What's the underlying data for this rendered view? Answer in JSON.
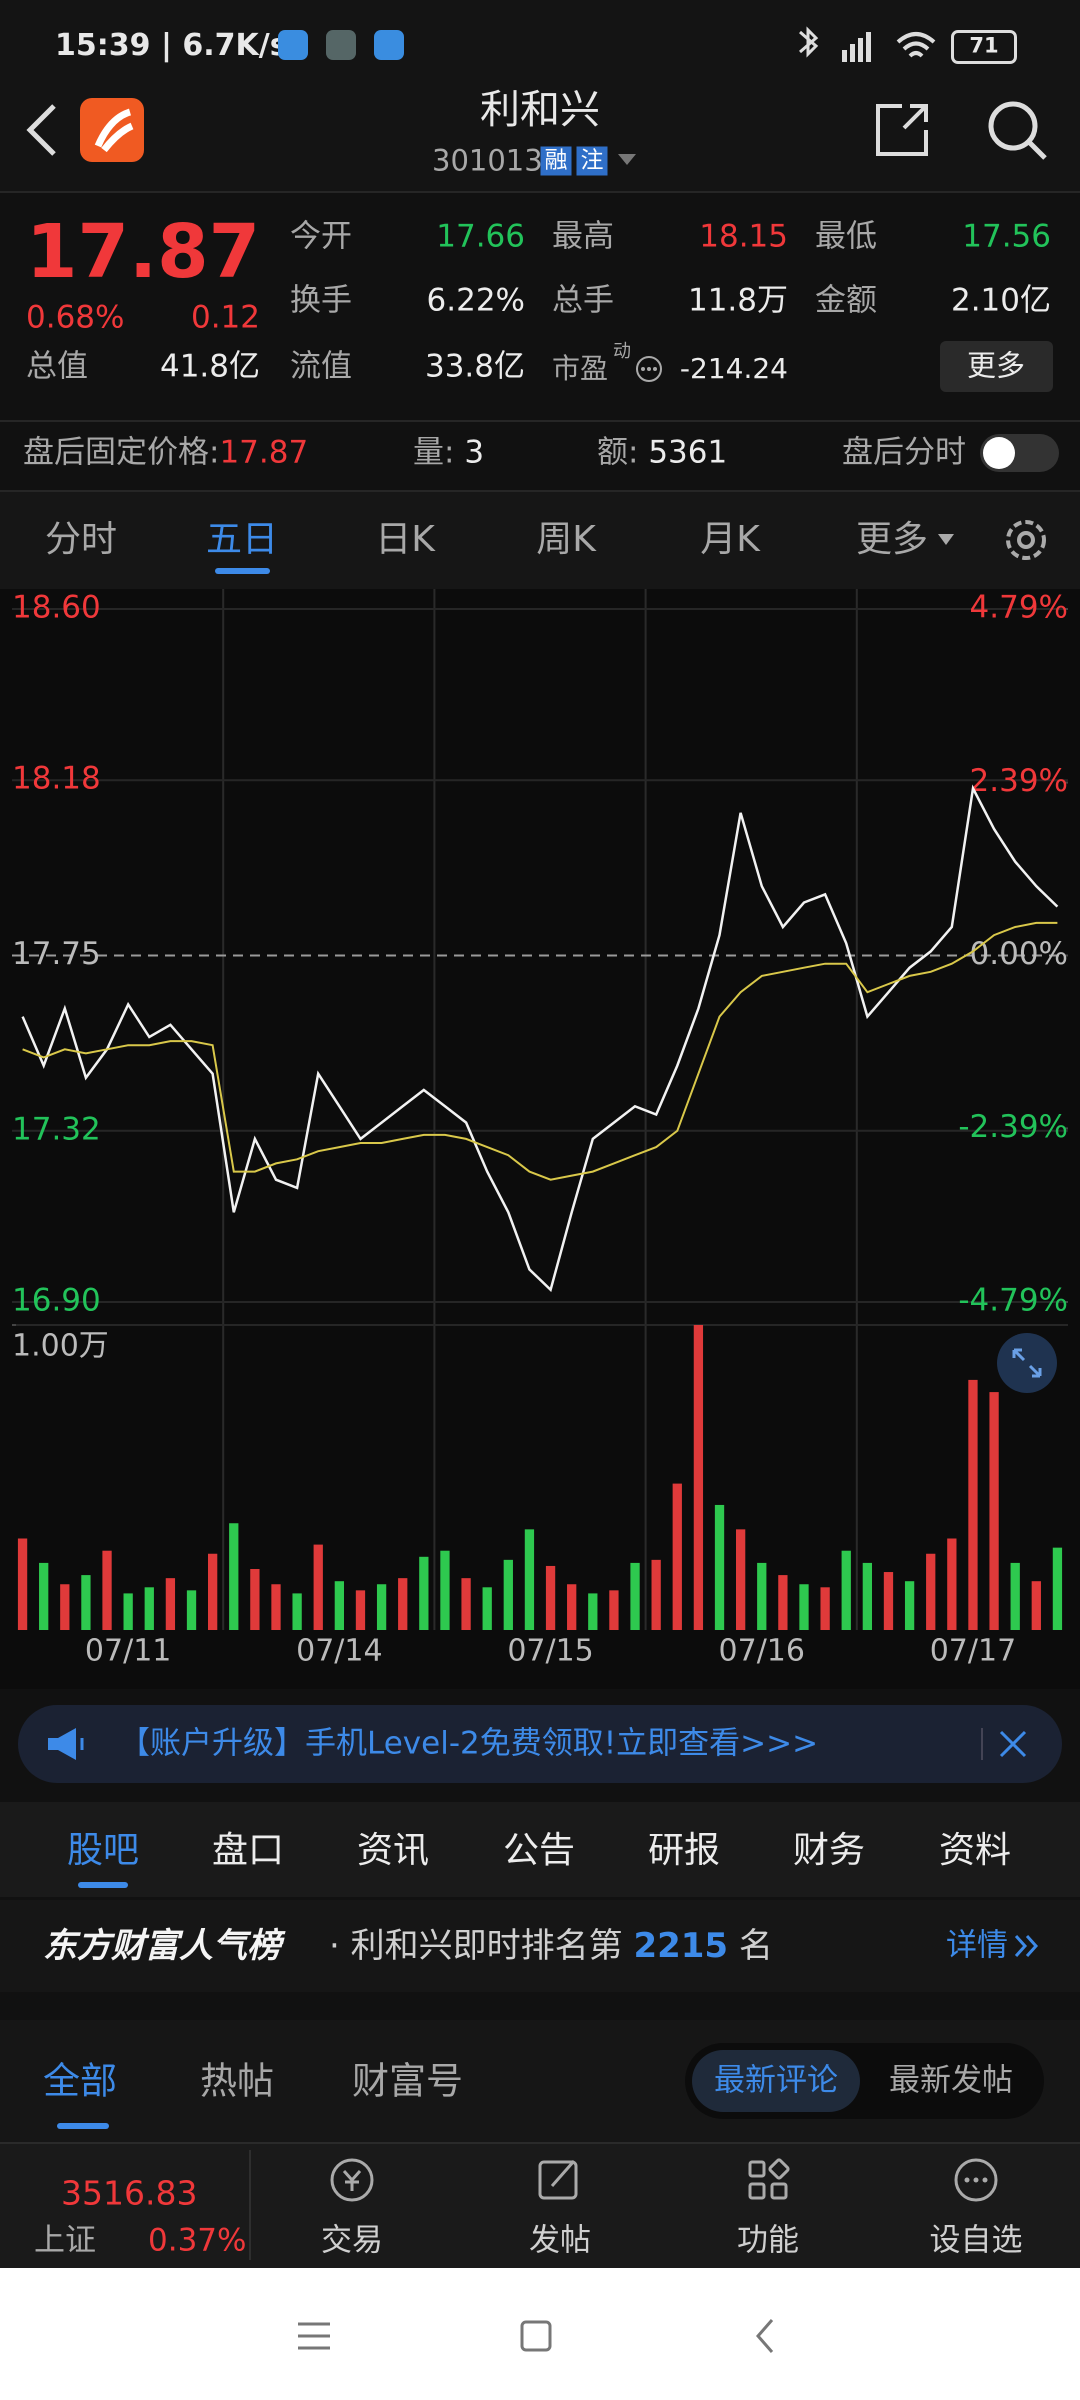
{
  "status_bar": {
    "time": "15:39 | 6.7K/s",
    "battery": "71"
  },
  "header": {
    "title": "利和兴",
    "code": "301013",
    "badges": [
      "融",
      "注"
    ]
  },
  "quote": {
    "price": "17.87",
    "change_pct": "0.68%",
    "change": "0.12",
    "stats": [
      [
        "今开",
        "17.66"
      ],
      [
        "最高",
        "18.15"
      ],
      [
        "最低",
        "17.56"
      ],
      [
        "换手",
        "6.22%"
      ],
      [
        "总手",
        "11.8万"
      ],
      [
        "金额",
        "2.10亿"
      ],
      [
        "总值",
        "41.8亿"
      ],
      [
        "流值",
        "33.8亿"
      ],
      [
        "市盈",
        "-214.24"
      ]
    ],
    "pe_tag": "动",
    "more_button": "更多"
  },
  "after_hours": {
    "label": "盘后固定价格:",
    "price": "17.87",
    "volume_label": "量:",
    "volume": "3",
    "amount_label": "额:",
    "amount": "5361",
    "toggle_label": "盘后分时"
  },
  "chart_tabs": [
    "分时",
    "五日",
    "日K",
    "周K",
    "月K",
    "更多"
  ],
  "chart_data": [
    {
      "type": "line",
      "grid": true,
      "ylim": [
        16.9,
        18.6
      ],
      "yticks": [
        {
          "value": 18.6,
          "label": "18.60"
        },
        18.18,
        17.75,
        17.32,
        {
          "value": 16.9,
          "label": "16.90"
        }
      ],
      "y2lim": [
        -4.79,
        4.79
      ],
      "y2ticks": [
        {
          "value": 4.79,
          "label": "4.79%"
        },
        {
          "value": 2.39,
          "label": "2.39%"
        },
        {
          "value": 0,
          "label": "0.00%"
        },
        {
          "value": -2.39,
          "label": "-2.39%"
        },
        {
          "value": -4.79,
          "label": "-4.79%"
        }
      ],
      "series": [
        {
          "color": "#f2f2f2",
          "values": [
            17.6,
            17.48,
            17.62,
            17.45,
            17.52,
            17.63,
            17.55,
            17.58,
            17.52,
            17.46,
            17.12,
            17.3,
            17.2,
            17.18,
            17.46,
            17.38,
            17.3,
            17.34,
            17.38,
            17.42,
            17.38,
            17.34,
            17.22,
            17.12,
            16.98,
            16.93,
            17.12,
            17.3,
            17.34,
            17.38,
            17.36,
            17.48,
            17.62,
            17.8,
            18.1,
            17.92,
            17.82,
            17.88,
            17.9,
            17.78,
            17.6,
            17.66,
            17.72,
            17.76,
            17.82,
            18.16,
            18.06,
            17.98,
            17.92,
            17.87
          ]
        },
        {
          "color": "#d9c84a",
          "values": [
            17.52,
            17.5,
            17.52,
            17.51,
            17.52,
            17.53,
            17.53,
            17.54,
            17.54,
            17.53,
            17.22,
            17.22,
            17.24,
            17.25,
            17.27,
            17.28,
            17.29,
            17.29,
            17.3,
            17.31,
            17.31,
            17.3,
            17.28,
            17.26,
            17.22,
            17.2,
            17.21,
            17.22,
            17.24,
            17.26,
            17.28,
            17.32,
            17.46,
            17.6,
            17.66,
            17.7,
            17.71,
            17.72,
            17.73,
            17.73,
            17.66,
            17.68,
            17.7,
            17.71,
            17.73,
            17.76,
            17.8,
            17.82,
            17.83,
            17.83
          ]
        }
      ]
    },
    {
      "type": "bar",
      "ylim": [
        0,
        10000
      ],
      "yticks": [
        {
          "value": 10000,
          "label": "1.00万"
        }
      ],
      "categories": [
        null,
        null,
        null,
        null,
        null,
        "07/11",
        null,
        null,
        null,
        null,
        null,
        null,
        null,
        null,
        null,
        "07/14",
        null,
        null,
        null,
        null,
        null,
        null,
        null,
        null,
        null,
        "07/15",
        null,
        null,
        null,
        null,
        null,
        null,
        null,
        null,
        null,
        "07/16",
        null,
        null,
        null,
        null,
        null,
        null,
        null,
        null,
        null,
        "07/17",
        null,
        null,
        null,
        null
      ],
      "values": [
        3000,
        2200,
        1500,
        1800,
        2600,
        1200,
        1400,
        1700,
        1300,
        2500,
        3500,
        2000,
        1500,
        1200,
        2800,
        1600,
        1300,
        1500,
        1700,
        2400,
        2600,
        1700,
        1400,
        2300,
        3300,
        2100,
        1500,
        1200,
        1300,
        2200,
        2300,
        4800,
        10000,
        4100,
        3300,
        2200,
        1800,
        1500,
        1400,
        2600,
        2200,
        1900,
        1600,
        2500,
        3000,
        8200,
        7800,
        2200,
        1600,
        2700
      ],
      "colors": [
        "#e03a3a",
        "#2ec94f",
        "#e03a3a",
        "#2ec94f",
        "#e03a3a",
        "#2ec94f",
        "#2ec94f",
        "#e03a3a",
        "#2ec94f",
        "#e03a3a",
        "#2ec94f",
        "#e03a3a",
        "#e03a3a",
        "#2ec94f",
        "#e03a3a",
        "#2ec94f",
        "#e03a3a",
        "#2ec94f",
        "#e03a3a",
        "#2ec94f",
        "#2ec94f",
        "#e03a3a",
        "#2ec94f",
        "#2ec94f",
        "#2ec94f",
        "#e03a3a",
        "#e03a3a",
        "#2ec94f",
        "#e03a3a",
        "#2ec94f",
        "#e03a3a",
        "#e03a3a",
        "#e03a3a",
        "#2ec94f",
        "#e03a3a",
        "#2ec94f",
        "#e03a3a",
        "#2ec94f",
        "#e03a3a",
        "#2ec94f",
        "#2ec94f",
        "#e03a3a",
        "#2ec94f",
        "#e03a3a",
        "#e03a3a",
        "#e03a3a",
        "#e03a3a",
        "#2ec94f",
        "#e03a3a",
        "#2ec94f"
      ]
    }
  ],
  "banner": {
    "text": "【账户升级】手机Level-2免费领取!立即查看>>>"
  },
  "section_tabs": [
    "股吧",
    "盘口",
    "资讯",
    "公告",
    "研报",
    "财务",
    "资料"
  ],
  "ranking": {
    "brand": "东方财富人气榜",
    "text": "· 利和兴即时排名第",
    "rank": "2215",
    "unit": "名",
    "details": "详情"
  },
  "post_tabs": [
    "全部",
    "热帖",
    "财富号"
  ],
  "sort_tabs": [
    "最新评论",
    "最新发帖"
  ],
  "bottom_bar": {
    "index_value": "3516.83",
    "index_name": "上证",
    "index_change": "0.37%",
    "actions": [
      "交易",
      "发帖",
      "功能",
      "设自选"
    ]
  }
}
